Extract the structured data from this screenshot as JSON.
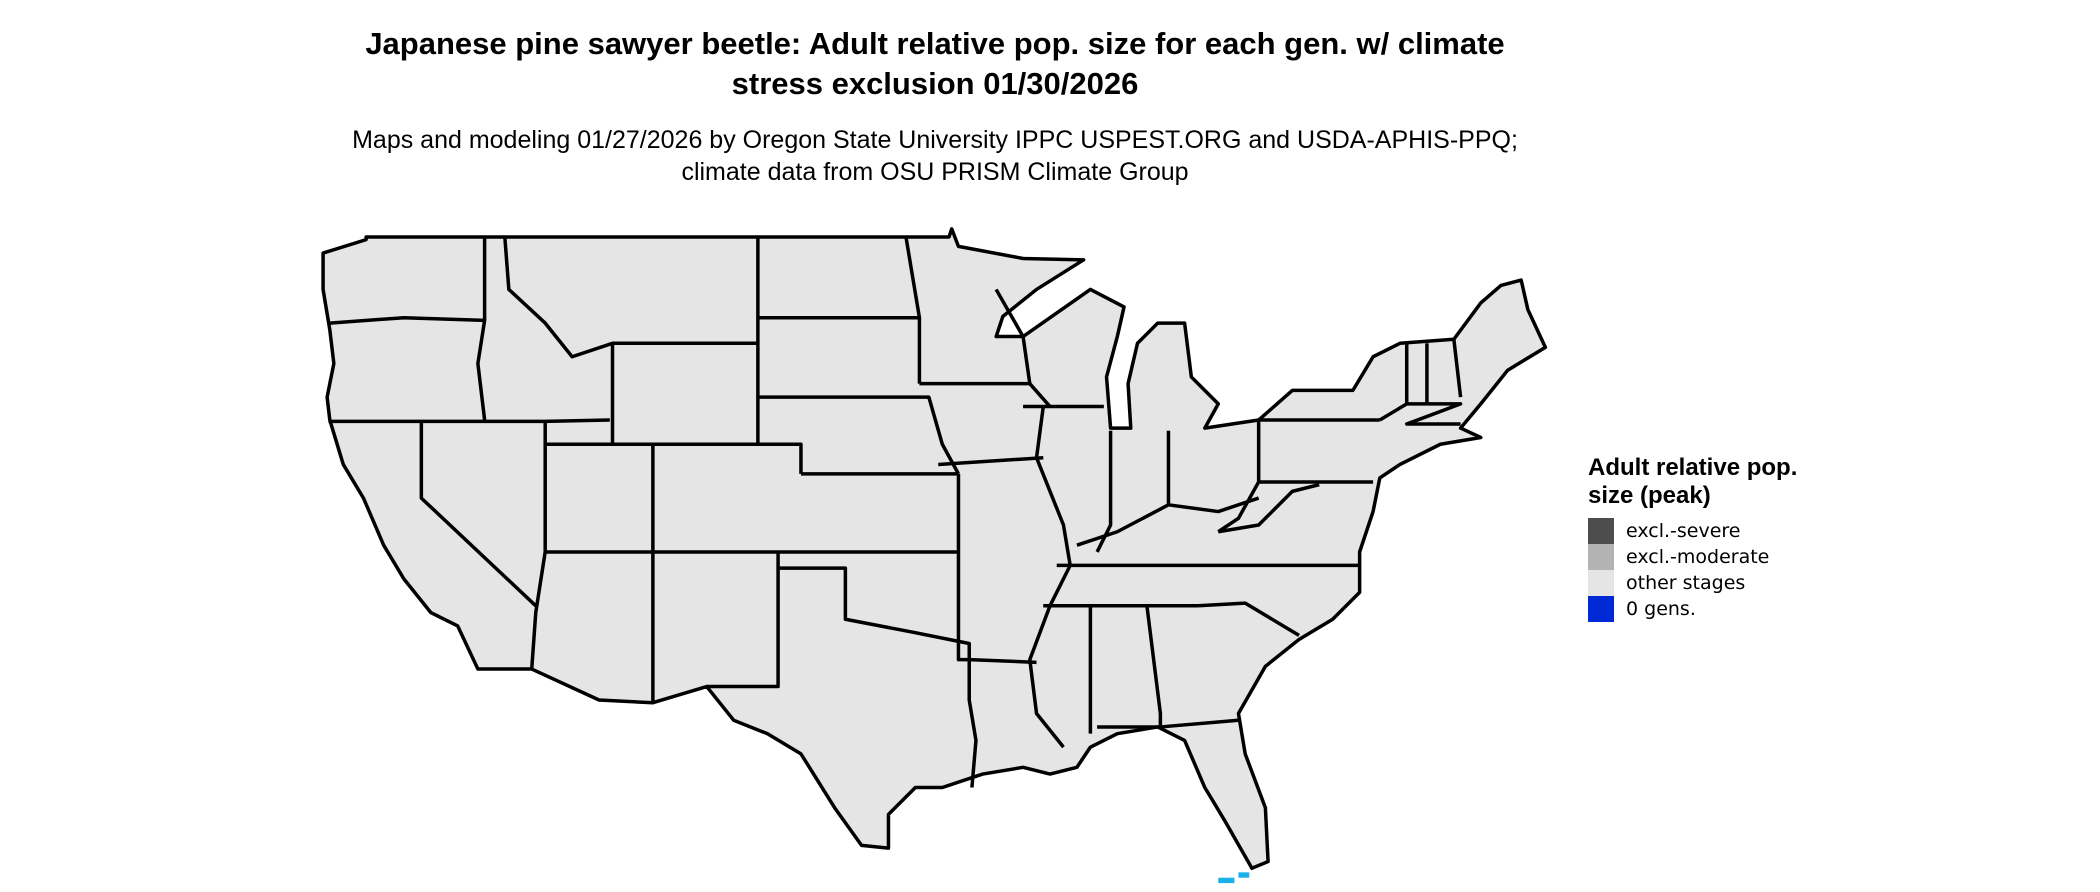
{
  "title": "Japanese pine sawyer beetle: Adult relative pop. size for each gen. w/ climate stress exclusion 01/30/2026",
  "subtitle": "Maps and modeling 01/27/2026 by Oregon State University IPPC USPEST.ORG and USDA-APHIS-PPQ; climate data from OSU PRISM Climate Group",
  "map": {
    "region": "Contiguous United States",
    "state_fill": "#e5e5e5",
    "border_color": "#000000",
    "zero_gens_color_visible": "#1ab0e8"
  },
  "legend": {
    "title": "Adult relative pop. size (peak)",
    "items": [
      {
        "label": "excl.-severe",
        "color": "#4d4d4d"
      },
      {
        "label": "excl.-moderate",
        "color": "#b3b3b3"
      },
      {
        "label": "other stages",
        "color": "#e5e5e5"
      },
      {
        "label": "0 gens.",
        "color": "#0029d6"
      }
    ]
  }
}
